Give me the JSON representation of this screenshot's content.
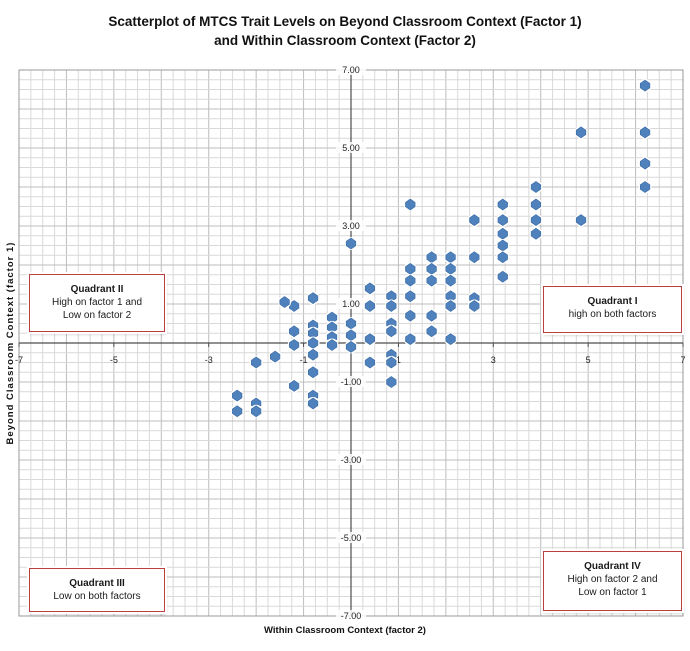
{
  "chart_data": {
    "type": "scatter",
    "title_line1": "Scatterplot of MTCS Trait Levels on Beyond Classroom Context (Factor 1)",
    "title_line2": "and Within Classroom Context (Factor 2)",
    "xlabel": "Within Classroom Context (factor 2)",
    "ylabel": "Beyond Classroom Context (factor 1)",
    "xlim": [
      -7,
      7
    ],
    "ylim": [
      -7,
      7
    ],
    "x_ticks": [
      "-7",
      "-5",
      "-3",
      "-1",
      "1",
      "3",
      "5",
      "7"
    ],
    "y_ticks": [
      "7.00",
      "5.00",
      "3.00",
      "1.00",
      "-1.00",
      "-3.00",
      "-5.00",
      "-7.00"
    ],
    "grid": true,
    "marker_color": "#4f81bd",
    "quadrants": {
      "q1": {
        "title": "Quadrant  I",
        "desc1": "high on both factors",
        "desc2": ""
      },
      "q2": {
        "title": "Quadrant  II",
        "desc1": "High on factor 1 and",
        "desc2": "Low on factor 2"
      },
      "q3": {
        "title": "Quadrant  III",
        "desc1": "Low on both factors",
        "desc2": ""
      },
      "q4": {
        "title": "Quadrant  IV",
        "desc1": "High on factor 2 and",
        "desc2": "Low on factor 1"
      }
    },
    "points": [
      [
        6.2,
        6.6
      ],
      [
        4.85,
        5.4
      ],
      [
        6.2,
        5.4
      ],
      [
        6.2,
        4.6
      ],
      [
        6.2,
        4.0
      ],
      [
        3.9,
        4.0
      ],
      [
        3.9,
        3.55
      ],
      [
        3.9,
        3.15
      ],
      [
        3.9,
        2.8
      ],
      [
        4.85,
        3.15
      ],
      [
        3.2,
        3.55
      ],
      [
        3.2,
        3.15
      ],
      [
        3.2,
        2.8
      ],
      [
        3.2,
        2.5
      ],
      [
        3.2,
        2.2
      ],
      [
        3.2,
        1.7
      ],
      [
        2.6,
        3.15
      ],
      [
        2.6,
        2.2
      ],
      [
        2.6,
        1.15
      ],
      [
        2.6,
        0.95
      ],
      [
        1.25,
        3.55
      ],
      [
        2.1,
        2.2
      ],
      [
        2.1,
        1.9
      ],
      [
        2.1,
        1.6
      ],
      [
        2.1,
        1.2
      ],
      [
        2.1,
        0.95
      ],
      [
        2.1,
        0.1
      ],
      [
        1.7,
        2.2
      ],
      [
        1.7,
        1.9
      ],
      [
        1.7,
        1.6
      ],
      [
        1.7,
        0.7
      ],
      [
        1.7,
        0.3
      ],
      [
        1.25,
        1.9
      ],
      [
        1.25,
        1.6
      ],
      [
        1.25,
        1.2
      ],
      [
        1.25,
        0.7
      ],
      [
        1.25,
        0.1
      ],
      [
        0.0,
        2.55
      ],
      [
        0.4,
        1.4
      ],
      [
        0.85,
        1.2
      ],
      [
        0.4,
        0.95
      ],
      [
        0.85,
        0.95
      ],
      [
        0.4,
        0.1
      ],
      [
        0.85,
        0.5
      ],
      [
        0.85,
        0.3
      ],
      [
        0.0,
        0.5
      ],
      [
        0.0,
        0.2
      ],
      [
        0.0,
        -0.1
      ],
      [
        0.4,
        -0.5
      ],
      [
        0.85,
        -0.3
      ],
      [
        0.85,
        -0.5
      ],
      [
        0.85,
        -1.0
      ],
      [
        -0.4,
        0.65
      ],
      [
        -0.4,
        0.4
      ],
      [
        -0.4,
        0.15
      ],
      [
        -0.4,
        -0.05
      ],
      [
        -0.8,
        1.15
      ],
      [
        -0.8,
        0.45
      ],
      [
        -0.8,
        0.25
      ],
      [
        -0.8,
        0.0
      ],
      [
        -0.8,
        -0.3
      ],
      [
        -0.8,
        -0.75
      ],
      [
        -0.8,
        -1.35
      ],
      [
        -0.8,
        -1.55
      ],
      [
        -1.2,
        0.95
      ],
      [
        -1.2,
        0.3
      ],
      [
        -1.2,
        -0.05
      ],
      [
        -1.2,
        -1.1
      ],
      [
        -1.4,
        1.05
      ],
      [
        -1.6,
        -0.35
      ],
      [
        -2.0,
        -0.5
      ],
      [
        -2.4,
        -1.35
      ],
      [
        -2.4,
        -1.75
      ],
      [
        -2.0,
        -1.55
      ],
      [
        -2.0,
        -1.75
      ]
    ],
    "annotations": []
  }
}
